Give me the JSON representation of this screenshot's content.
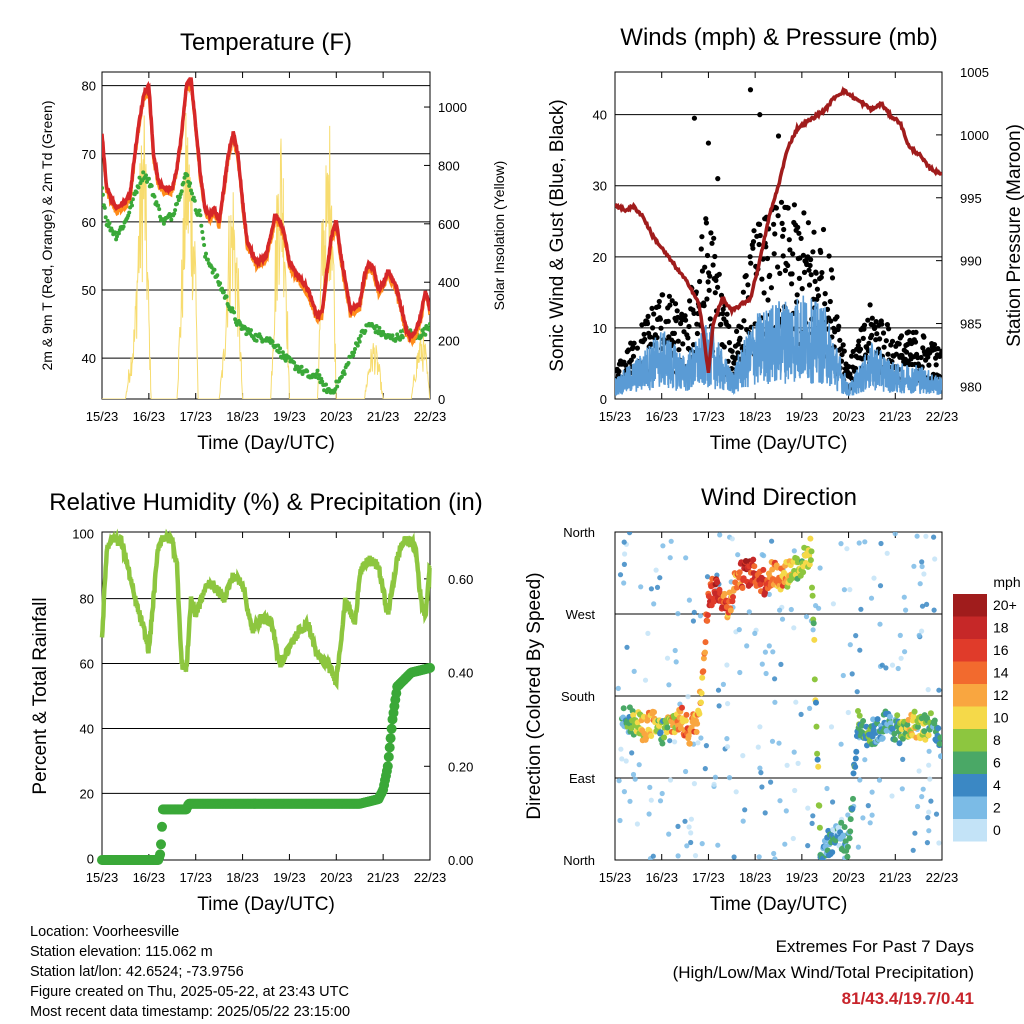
{
  "info": {
    "location": "Location: Voorheesville",
    "elevation": "Station elevation: 115.062 m",
    "latlon": "Station lat/lon: 42.6524; -73.9756",
    "created": "Figure created on Thu, 2025-05-22, at 23:43 UTC",
    "latest": "Most recent data timestamp: 2025/05/22 23:15:00"
  },
  "extremes": {
    "title": "Extremes For Past 7 Days",
    "subtitle": "(High/Low/Max Wind/Total Precipitation)",
    "values": "81/43.4/19.7/0.41"
  },
  "chart_data": [
    {
      "type": "line",
      "title": "Temperature (F)",
      "xlabel": "Time (Day/UTC)",
      "ylabel": "2m & 9m T (Red, Orange) & 2m Td (Green)",
      "y2label": "Solar Insolation (Yellow)",
      "x_ticks": [
        "15/23",
        "16/23",
        "17/23",
        "18/23",
        "19/23",
        "20/23",
        "21/23",
        "22/23"
      ],
      "xlim": [
        0,
        7
      ],
      "ylim": [
        34,
        82
      ],
      "y_ticks": [
        "40",
        "50",
        "60",
        "70",
        "80"
      ],
      "y2lim": [
        0,
        1120
      ],
      "y2_ticks": [
        "0",
        "200",
        "400",
        "600",
        "800",
        "1000"
      ],
      "grid": "horizontal",
      "colors": {
        "t2m": "#d62728",
        "t9m": "#ff8c1a",
        "td": "#3aa838",
        "solar": "#f7dc6f"
      },
      "series": [
        {
          "key": "t2m",
          "x": [
            0,
            0.1,
            0.3,
            0.5,
            0.6,
            0.7,
            0.8,
            0.9,
            1.0,
            1.05,
            1.1,
            1.2,
            1.3,
            1.5,
            1.6,
            1.7,
            1.8,
            1.9,
            2.0,
            2.1,
            2.2,
            2.3,
            2.4,
            2.5,
            2.6,
            2.7,
            2.8,
            2.9,
            3.0,
            3.1,
            3.3,
            3.5,
            3.6,
            3.7,
            3.8,
            3.9,
            4.0,
            4.2,
            4.4,
            4.5,
            4.6,
            4.7,
            4.8,
            4.9,
            5.0,
            5.1,
            5.3,
            5.5,
            5.6,
            5.7,
            5.8,
            5.9,
            6.0,
            6.1,
            6.3,
            6.5,
            6.6,
            6.7,
            6.8,
            6.9,
            7.0
          ],
          "y": [
            73,
            65,
            62,
            63,
            64,
            70,
            75,
            79,
            80,
            75,
            70,
            66,
            65,
            65,
            68,
            73,
            80,
            81,
            74,
            67,
            62,
            61,
            62,
            60,
            65,
            70,
            73,
            70,
            63,
            57,
            54,
            55,
            58,
            61,
            60,
            58,
            54,
            52,
            50,
            48,
            46,
            47,
            53,
            58,
            60,
            55,
            47,
            48,
            52,
            54,
            53,
            50,
            51,
            53,
            50,
            44,
            43,
            44,
            46,
            50,
            47
          ]
        },
        {
          "key": "td",
          "x": [
            0,
            0.1,
            0.3,
            0.5,
            0.6,
            0.7,
            0.8,
            0.9,
            1.0,
            1.2,
            1.3,
            1.5,
            1.6,
            1.7,
            1.8,
            1.9,
            2.0,
            2.1,
            2.2,
            2.3,
            2.5,
            2.7,
            2.9,
            3.1,
            3.3,
            3.5,
            3.7,
            3.9,
            4.1,
            4.3,
            4.5,
            4.6,
            4.7,
            4.9,
            5.1,
            5.3,
            5.5,
            5.7,
            5.9,
            6.1,
            6.3,
            6.5,
            6.7,
            6.9,
            7.0
          ],
          "y": [
            65,
            60,
            58,
            60,
            62,
            64,
            66,
            67,
            66,
            62,
            60,
            61,
            63,
            65,
            67,
            65,
            62,
            61,
            55,
            54,
            51,
            48,
            45,
            44,
            43,
            43,
            42,
            40,
            39,
            38,
            37,
            38,
            36,
            35,
            37,
            40,
            43,
            45,
            44,
            43,
            43,
            44,
            43,
            44,
            45
          ]
        },
        {
          "key": "solar",
          "x": [
            0,
            0.3,
            0.5,
            0.7,
            0.8,
            0.9,
            1.05,
            1.2,
            1.4,
            1.6,
            1.7,
            1.8,
            1.9,
            2.0,
            2.05,
            2.3,
            2.5,
            2.6,
            2.7,
            2.8,
            2.9,
            3.0,
            3.3,
            3.6,
            3.7,
            3.8,
            3.9,
            4.0,
            4.3,
            4.6,
            4.7,
            4.8,
            4.9,
            5.0,
            5.3,
            5.6,
            5.7,
            5.8,
            5.9,
            6.0,
            6.3,
            6.6,
            6.7,
            6.8,
            6.9,
            7.0
          ],
          "y": [
            0,
            0,
            0,
            300,
            800,
            1100,
            0,
            0,
            0,
            0,
            500,
            1050,
            900,
            600,
            0,
            0,
            0,
            200,
            650,
            800,
            500,
            0,
            0,
            0,
            600,
            1050,
            800,
            0,
            0,
            0,
            700,
            850,
            1050,
            0,
            0,
            0,
            150,
            220,
            150,
            0,
            0,
            0,
            150,
            250,
            200,
            0
          ]
        }
      ]
    },
    {
      "type": "scatter",
      "title": "Winds (mph) & Pressure (mb)",
      "xlabel": "Time (Day/UTC)",
      "ylabel": "Sonic Wind & Gust (Blue, Black)",
      "y2label": "Station Pressure (Maroon)",
      "x_ticks": [
        "15/23",
        "16/23",
        "17/23",
        "18/23",
        "19/23",
        "20/23",
        "21/23",
        "22/23"
      ],
      "xlim": [
        0,
        7
      ],
      "ylim": [
        0,
        46
      ],
      "y_ticks": [
        "0",
        "10",
        "20",
        "30",
        "40"
      ],
      "y2lim": [
        979,
        1005
      ],
      "y2_ticks": [
        "980",
        "985",
        "990",
        "995",
        "1000",
        "1005"
      ],
      "grid": "horizontal",
      "colors": {
        "wind": "#5a9bd5",
        "gust": "#000000",
        "pressure": "#a01c1c"
      },
      "series": [
        {
          "key": "wind_envelope",
          "x": [
            0,
            0.5,
            1.0,
            1.5,
            2.0,
            2.5,
            3.0,
            3.5,
            4.0,
            4.5,
            5.0,
            5.5,
            6.0,
            6.5,
            7.0
          ],
          "y": [
            3,
            6,
            10,
            6,
            11,
            4,
            12,
            14,
            15,
            13,
            2,
            8,
            5,
            5,
            3
          ]
        },
        {
          "key": "gust_envelope",
          "x": [
            0,
            0.5,
            1.0,
            1.5,
            2.0,
            2.5,
            3.0,
            3.5,
            4.0,
            4.5,
            5.0,
            5.5,
            6.0,
            6.5,
            7.0
          ],
          "y": [
            4,
            10,
            16,
            12,
            28,
            8,
            25,
            28,
            27,
            24,
            5,
            14,
            9,
            10,
            7
          ]
        },
        {
          "key": "pressure",
          "x": [
            0,
            0.2,
            0.4,
            0.6,
            0.8,
            1.0,
            1.2,
            1.4,
            1.6,
            1.8,
            1.9,
            2.0,
            2.1,
            2.3,
            2.5,
            2.7,
            2.9,
            3.1,
            3.3,
            3.5,
            3.7,
            3.9,
            4.1,
            4.3,
            4.5,
            4.7,
            4.9,
            5.1,
            5.3,
            5.5,
            5.7,
            5.9,
            6.1,
            6.3,
            6.5,
            6.7,
            6.9,
            7.0
          ],
          "y": [
            994.5,
            994,
            994.3,
            993.5,
            992,
            991,
            990,
            989,
            988,
            986.5,
            984,
            981,
            985,
            987,
            986,
            986.5,
            987,
            990,
            993.5,
            996,
            999,
            1000.5,
            1001,
            1001.5,
            1002,
            1003,
            1003.5,
            1003,
            1002.5,
            1002,
            1002.5,
            1001.5,
            1001,
            999,
            998.5,
            997.5,
            997,
            997
          ]
        },
        {
          "key": "gust_peaks",
          "x": [
            1.7,
            2.0,
            2.2,
            2.9,
            3.1,
            3.5
          ],
          "y": [
            39.5,
            36,
            31,
            43.5,
            40,
            37
          ]
        }
      ]
    },
    {
      "type": "line",
      "title": "Relative Humidity (%) & Precipitation (in)",
      "xlabel": "Time (Day/UTC)",
      "ylabel": "Percent & Total Rainfall",
      "x_ticks": [
        "15/23",
        "16/23",
        "17/23",
        "18/23",
        "19/23",
        "20/23",
        "21/23",
        "22/23"
      ],
      "xlim": [
        0,
        7
      ],
      "ylim": [
        -0.5,
        100.5
      ],
      "y_ticks": [
        "0",
        "20",
        "40",
        "60",
        "80",
        "100"
      ],
      "y2lim": [
        0,
        0.7
      ],
      "y2_ticks": [
        "0.00",
        "0.20",
        "0.40",
        "0.60"
      ],
      "grid": "horizontal",
      "colors": {
        "rh": "#8dc63f",
        "precip": "#3aa838"
      },
      "series": [
        {
          "key": "rh",
          "x": [
            0,
            0.1,
            0.2,
            0.4,
            0.5,
            0.7,
            0.9,
            1.0,
            1.1,
            1.2,
            1.3,
            1.5,
            1.6,
            1.7,
            1.8,
            1.9,
            2.0,
            2.2,
            2.3,
            2.5,
            2.6,
            2.8,
            3.0,
            3.2,
            3.4,
            3.6,
            3.8,
            4.0,
            4.2,
            4.4,
            4.6,
            4.8,
            5.0,
            5.2,
            5.4,
            5.5,
            5.6,
            5.7,
            5.9,
            6.1,
            6.3,
            6.4,
            6.5,
            6.6,
            6.7,
            6.8,
            6.9,
            7.0
          ],
          "y": [
            68,
            95,
            99,
            98,
            93,
            80,
            70,
            64,
            80,
            96,
            99,
            98,
            90,
            60,
            58,
            80,
            75,
            83,
            85,
            82,
            80,
            87,
            85,
            70,
            74,
            73,
            60,
            65,
            70,
            72,
            62,
            60,
            55,
            80,
            72,
            88,
            90,
            92,
            90,
            75,
            92,
            97,
            98,
            97,
            95,
            80,
            75,
            90
          ]
        },
        {
          "key": "precip",
          "x": [
            0,
            1.2,
            1.25,
            1.3,
            1.8,
            1.85,
            5.5,
            5.9,
            6.0,
            6.1,
            6.2,
            6.3,
            6.5,
            6.6,
            7.0
          ],
          "y": [
            0,
            0,
            0.015,
            0.108,
            0.108,
            0.12,
            0.12,
            0.13,
            0.15,
            0.2,
            0.3,
            0.37,
            0.39,
            0.4,
            0.41
          ]
        }
      ]
    },
    {
      "type": "scatter",
      "title": "Wind Direction",
      "xlabel": "Time (Day/UTC)",
      "ylabel": "Direction (Colored By Speed)",
      "x_ticks": [
        "15/23",
        "16/23",
        "17/23",
        "18/23",
        "19/23",
        "20/23",
        "21/23",
        "22/23"
      ],
      "xlim": [
        0,
        7
      ],
      "ylim": [
        0,
        360
      ],
      "y_ticks": [
        "North",
        "East",
        "South",
        "West",
        "North"
      ],
      "grid": "horizontal",
      "colorbar": {
        "title": "mph",
        "labels": [
          "20+",
          "18",
          "16",
          "14",
          "12",
          "10",
          "8",
          "6",
          "4",
          "2",
          "0"
        ],
        "colors": [
          "#a01c1c",
          "#c62828",
          "#e03b2a",
          "#f26a2e",
          "#f9a640",
          "#f5d949",
          "#8dc63f",
          "#4aa866",
          "#3b88c4",
          "#7bbbe6",
          "#c3e3f7"
        ]
      },
      "series": [
        {
          "key": "direction",
          "x": [
            0.2,
            0.4,
            0.6,
            0.8,
            1.0,
            1.2,
            1.4,
            1.6,
            1.8,
            2.0,
            2.2,
            2.4,
            2.6,
            2.8,
            3.0,
            3.2,
            3.4,
            3.6,
            3.8,
            4.0,
            4.2,
            4.4,
            4.6,
            4.8,
            5.0,
            5.2,
            5.4,
            5.6,
            5.8,
            6.0,
            6.2,
            6.4,
            6.6,
            6.8,
            7.0
          ],
          "y": [
            160,
            150,
            145,
            150,
            140,
            150,
            155,
            140,
            160,
            290,
            300,
            275,
            310,
            315,
            315,
            305,
            315,
            310,
            320,
            325,
            340,
            5,
            20,
            30,
            15,
            150,
            140,
            140,
            150,
            145,
            140,
            150,
            145,
            150,
            125
          ],
          "speed": [
            3,
            8,
            10,
            12,
            6,
            10,
            12,
            14,
            12,
            16,
            18,
            14,
            12,
            18,
            16,
            16,
            14,
            12,
            10,
            8,
            8,
            6,
            4,
            3,
            4,
            6,
            6,
            4,
            4,
            4,
            8,
            10,
            8,
            6,
            4
          ]
        }
      ]
    }
  ]
}
